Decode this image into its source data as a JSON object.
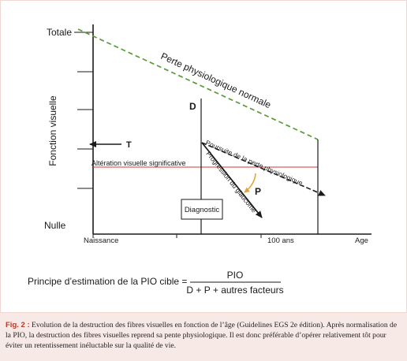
{
  "y_axis": {
    "label": "Fonction visuelle",
    "top_tick": "Totale",
    "bottom_tick": "Nulle"
  },
  "x_axis": {
    "label": "Age",
    "start_tick": "Naissance",
    "end_tick": "100 ans"
  },
  "labels": {
    "normal_loss": "Perte physiologique normale",
    "continued_loss": "Poursuite de la perte physiologique",
    "glaucoma_progression": "Progression du glaucome",
    "significant_impairment": "Altération visuelle significative",
    "diagnosis": "Diagnostic",
    "D": "D",
    "T": "T",
    "P": "P"
  },
  "formula": {
    "prefix": "Principe d’estimation de la PIO cible =",
    "numerator": "PIO",
    "denominator": "D + P + autres facteurs"
  },
  "caption": {
    "label": "Fig. 2 :",
    "text": "Evolution de la destruction des fibres visuelles en fonction de l’âge (Guidelines EGS 2e édition). Après normalisation de la PIO, la destruction des fibres visuelles reprend sa pente physiologique. Il est donc préférable d’opérer relativement tôt pour éviter un retentissement inéluctable sur la qualité de vie."
  },
  "colors": {
    "normal_curve": "#5a9a3a",
    "impairment_line": "#cc3a3a",
    "arc": "#e3a33a",
    "caption_label": "#b73a2a",
    "caption_bg": "#f7e9e6"
  }
}
